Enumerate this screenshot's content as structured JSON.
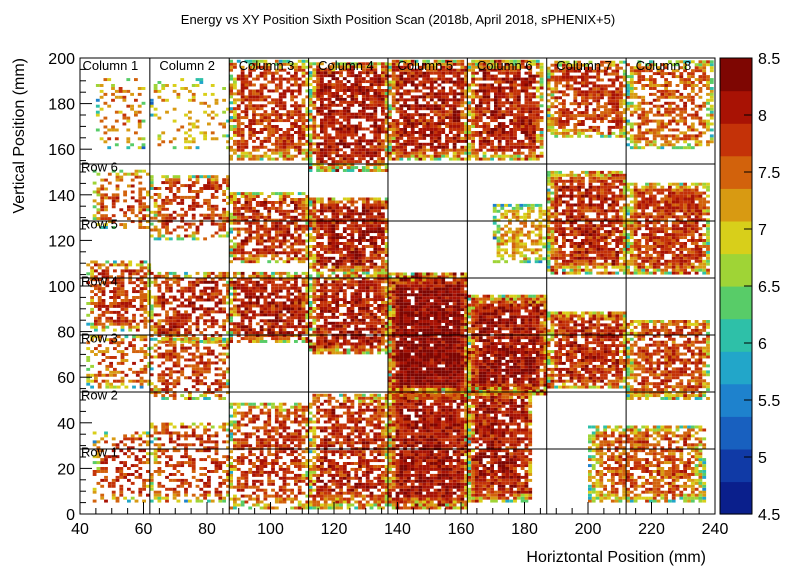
{
  "chart_data": {
    "type": "heatmap",
    "title": "Energy vs XY Position Sixth Position Scan (2018b, April 2018, sPHENIX+5)",
    "xlabel": "Horiztontal Position (mm)",
    "ylabel": "Vertical Position (mm)",
    "xlim": [
      40,
      240
    ],
    "ylim": [
      0,
      200
    ],
    "zlim": [
      4.5,
      8.5
    ],
    "x_ticks": [
      "40",
      "60",
      "80",
      "100",
      "120",
      "140",
      "160",
      "180",
      "200",
      "220",
      "240"
    ],
    "y_ticks": [
      "0",
      "20",
      "40",
      "60",
      "80",
      "100",
      "120",
      "140",
      "160",
      "180",
      "200"
    ],
    "z_ticks": [
      "4.5",
      "5",
      "5.5",
      "6",
      "6.5",
      "7",
      "7.5",
      "8",
      "8.5"
    ],
    "grid": true,
    "column_lines_x": [
      62,
      87,
      112,
      137,
      162,
      187,
      212
    ],
    "row_lines_y": [
      28.5,
      53.5,
      78.5,
      103.5,
      128.5,
      153.5
    ],
    "column_labels": [
      {
        "text": "Column 1",
        "x": 40.8
      },
      {
        "text": "Column 2",
        "x": 65
      },
      {
        "text": "Column 3",
        "x": 90
      },
      {
        "text": "Column 4",
        "x": 115
      },
      {
        "text": "Column 5",
        "x": 140
      },
      {
        "text": "Column 6",
        "x": 165
      },
      {
        "text": "Column 7",
        "x": 190
      },
      {
        "text": "Column 8",
        "x": 215
      }
    ],
    "row_labels": [
      {
        "text": "Row 1",
        "y": 29.5
      },
      {
        "text": "Row 2",
        "y": 54.5
      },
      {
        "text": "Row 3",
        "y": 79.5
      },
      {
        "text": "Row 4",
        "y": 104.5
      },
      {
        "text": "Row 5",
        "y": 129.5
      },
      {
        "text": "Row 6",
        "y": 154.5
      }
    ],
    "palette": [
      "#0a1f8c",
      "#103aa6",
      "#1860bf",
      "#1e82cd",
      "#22a6c9",
      "#2ec0a8",
      "#58cc68",
      "#9fd436",
      "#d8cf1a",
      "#d89a12",
      "#d2620c",
      "#c43208",
      "#a81204",
      "#7e0602"
    ],
    "regions": [
      {
        "x": [
          45,
          60
        ],
        "y": [
          160,
          190
        ],
        "z": 7.4,
        "density": 0.3
      },
      {
        "x": [
          62,
          87
        ],
        "y": [
          160,
          190
        ],
        "z": 7.2,
        "density": 0.2
      },
      {
        "x": [
          87,
          112
        ],
        "y": [
          155,
          198
        ],
        "z": 7.8,
        "density": 0.7
      },
      {
        "x": [
          112,
          137
        ],
        "y": [
          150,
          198
        ],
        "z": 8.0,
        "density": 0.8
      },
      {
        "x": [
          137,
          162
        ],
        "y": [
          155,
          198
        ],
        "z": 8.0,
        "density": 0.8
      },
      {
        "x": [
          162,
          185
        ],
        "y": [
          155,
          198
        ],
        "z": 8.0,
        "density": 0.8
      },
      {
        "x": [
          187,
          212
        ],
        "y": [
          165,
          198
        ],
        "z": 7.8,
        "density": 0.7
      },
      {
        "x": [
          212,
          239
        ],
        "y": [
          160,
          198
        ],
        "z": 7.6,
        "density": 0.6
      },
      {
        "x": [
          44,
          62
        ],
        "y": [
          125,
          150
        ],
        "z": 7.6,
        "density": 0.4
      },
      {
        "x": [
          62,
          87
        ],
        "y": [
          120,
          148
        ],
        "z": 7.8,
        "density": 0.5
      },
      {
        "x": [
          87,
          112
        ],
        "y": [
          110,
          140
        ],
        "z": 7.9,
        "density": 0.7
      },
      {
        "x": [
          112,
          137
        ],
        "y": [
          105,
          138
        ],
        "z": 8.0,
        "density": 0.8
      },
      {
        "x": [
          170,
          187
        ],
        "y": [
          110,
          135
        ],
        "z": 7.2,
        "density": 0.6
      },
      {
        "x": [
          187,
          212
        ],
        "y": [
          105,
          150
        ],
        "z": 7.9,
        "density": 0.8
      },
      {
        "x": [
          212,
          238
        ],
        "y": [
          105,
          145
        ],
        "z": 7.8,
        "density": 0.8
      },
      {
        "x": [
          42,
          62
        ],
        "y": [
          80,
          110
        ],
        "z": 7.8,
        "density": 0.6
      },
      {
        "x": [
          62,
          87
        ],
        "y": [
          75,
          105
        ],
        "z": 7.9,
        "density": 0.6
      },
      {
        "x": [
          87,
          112
        ],
        "y": [
          75,
          105
        ],
        "z": 8.0,
        "density": 0.8
      },
      {
        "x": [
          112,
          137
        ],
        "y": [
          70,
          105
        ],
        "z": 8.0,
        "density": 0.8
      },
      {
        "x": [
          137,
          162
        ],
        "y": [
          50,
          105
        ],
        "z": 8.3,
        "density": 0.95
      },
      {
        "x": [
          162,
          187
        ],
        "y": [
          52,
          95
        ],
        "z": 8.1,
        "density": 0.9
      },
      {
        "x": [
          187,
          212
        ],
        "y": [
          55,
          88
        ],
        "z": 7.9,
        "density": 0.8
      },
      {
        "x": [
          212,
          238
        ],
        "y": [
          50,
          85
        ],
        "z": 7.7,
        "density": 0.7
      },
      {
        "x": [
          42,
          62
        ],
        "y": [
          55,
          78
        ],
        "z": 7.6,
        "density": 0.4
      },
      {
        "x": [
          62,
          87
        ],
        "y": [
          50,
          76
        ],
        "z": 7.8,
        "density": 0.5
      },
      {
        "x": [
          87,
          112
        ],
        "y": [
          2,
          48
        ],
        "z": 7.8,
        "density": 0.6
      },
      {
        "x": [
          112,
          137
        ],
        "y": [
          2,
          52
        ],
        "z": 7.9,
        "density": 0.7
      },
      {
        "x": [
          137,
          162
        ],
        "y": [
          2,
          55
        ],
        "z": 8.1,
        "density": 0.9
      },
      {
        "x": [
          162,
          182
        ],
        "y": [
          5,
          55
        ],
        "z": 8.0,
        "density": 0.85
      },
      {
        "x": [
          44,
          62
        ],
        "y": [
          5,
          35
        ],
        "z": 7.8,
        "density": 0.35
      },
      {
        "x": [
          62,
          87
        ],
        "y": [
          5,
          40
        ],
        "z": 7.8,
        "density": 0.45
      },
      {
        "x": [
          200,
          236
        ],
        "y": [
          5,
          38
        ],
        "z": 7.6,
        "density": 0.7
      }
    ]
  }
}
